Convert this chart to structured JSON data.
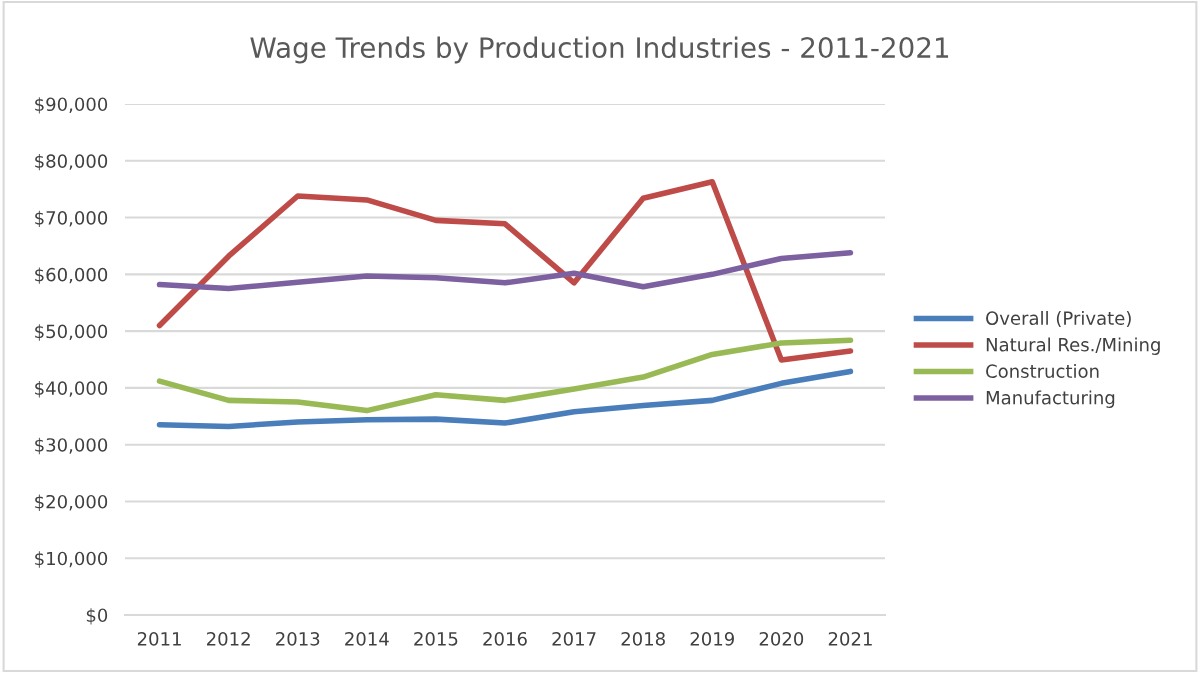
{
  "chart_data": {
    "type": "line",
    "title": "Wage Trends by Production Industries - 2011-2021",
    "categories": [
      "2011",
      "2012",
      "2013",
      "2014",
      "2015",
      "2016",
      "2017",
      "2018",
      "2019",
      "2020",
      "2021"
    ],
    "series": [
      {
        "name": "Overall (Private)",
        "color": "#4a7ebb",
        "values": [
          33500,
          33200,
          34000,
          34400,
          34500,
          33800,
          35800,
          36900,
          37800,
          40800,
          42900
        ]
      },
      {
        "name": "Natural Res./Mining",
        "color": "#be4b48",
        "values": [
          51000,
          63200,
          73800,
          73100,
          69500,
          68900,
          58500,
          73400,
          76300,
          44900,
          46500
        ]
      },
      {
        "name": "Construction",
        "color": "#98b954",
        "values": [
          41200,
          37800,
          37500,
          36000,
          38800,
          37800,
          39800,
          41900,
          45900,
          47900,
          48400
        ]
      },
      {
        "name": "Manufacturing",
        "color": "#7d60a0",
        "values": [
          58200,
          57500,
          58600,
          59700,
          59400,
          58500,
          60200,
          57800,
          60000,
          62800,
          63800
        ]
      }
    ],
    "ylim": [
      0,
      90000
    ],
    "yticks": [
      {
        "value": 0,
        "label": "$0"
      },
      {
        "value": 10000,
        "label": "$10,000"
      },
      {
        "value": 20000,
        "label": "$20,000"
      },
      {
        "value": 30000,
        "label": "$30,000"
      },
      {
        "value": 40000,
        "label": "$40,000"
      },
      {
        "value": 50000,
        "label": "$50,000"
      },
      {
        "value": 60000,
        "label": "$60,000"
      },
      {
        "value": 70000,
        "label": "$70,000"
      },
      {
        "value": 80000,
        "label": "$80,000"
      },
      {
        "value": 90000,
        "label": "$90,000"
      }
    ],
    "grid": "y",
    "legend": "right",
    "marker": "none",
    "line_style": "solid"
  }
}
